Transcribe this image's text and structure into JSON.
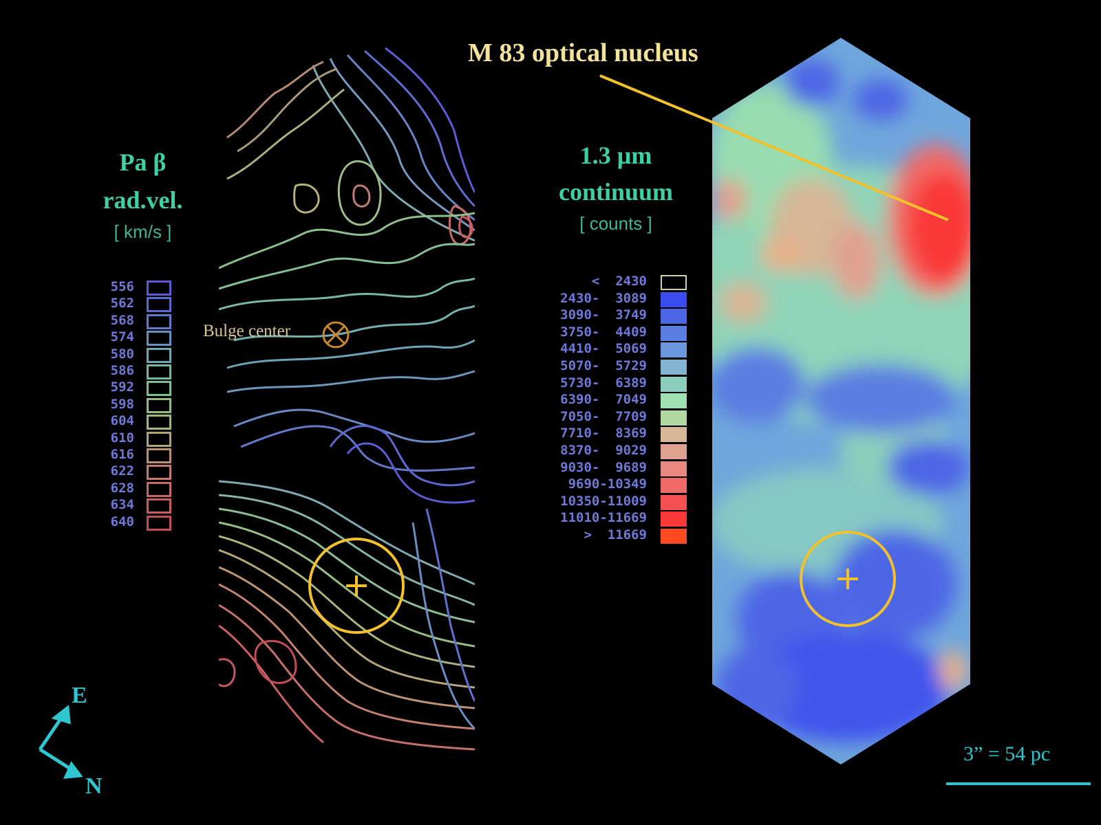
{
  "nucleus_label": "M 83  optical nucleus",
  "bulge_label": "Bulge center",
  "scale_label": "3” = 54 pc",
  "compass": {
    "east": "E",
    "north": "N"
  },
  "velocity_legend": {
    "title_line1": "Pa β",
    "title_line2": "rad.vel.",
    "unit": "[ km/s ]",
    "levels": [
      "556",
      "562",
      "568",
      "574",
      "580",
      "586",
      "592",
      "598",
      "604",
      "610",
      "616",
      "622",
      "628",
      "634",
      "640"
    ],
    "colors": [
      "#5a5cd6",
      "#5a6ad0",
      "#5f7bcb",
      "#6590c2",
      "#6ea8b4",
      "#74b8a3",
      "#80c090",
      "#90bf80",
      "#a0b87a",
      "#b0a476",
      "#bd9070",
      "#c57a6c",
      "#c96868",
      "#c95a5e",
      "#c44e56"
    ]
  },
  "continuum_legend": {
    "title_line1": "1.3 µm",
    "title_line2": "continuum",
    "unit": "[ counts ]",
    "ranges": [
      "<  2430",
      "2430-  3089",
      "3090-  3749",
      "3750-  4409",
      "4410-  5069",
      "5070-  5729",
      "5730-  6389",
      "6390-  7049",
      "7050-  7709",
      "7710-  8369",
      "8370-  9029",
      "9030-  9689",
      "9690-10349",
      "10350-11009",
      "11010-11669",
      ">  11669"
    ],
    "colors": [
      "#000000",
      "#3a4cf0",
      "#4d66e6",
      "#5a7ee2",
      "#6b98dc",
      "#82b4d4",
      "#8ccfbc",
      "#9ee0b0",
      "#b0d8a0",
      "#d6b696",
      "#e0a090",
      "#e88880",
      "#f06a68",
      "#f55050",
      "#fa3838",
      "#ff4a22"
    ]
  },
  "accent_color": "#f2c12b"
}
